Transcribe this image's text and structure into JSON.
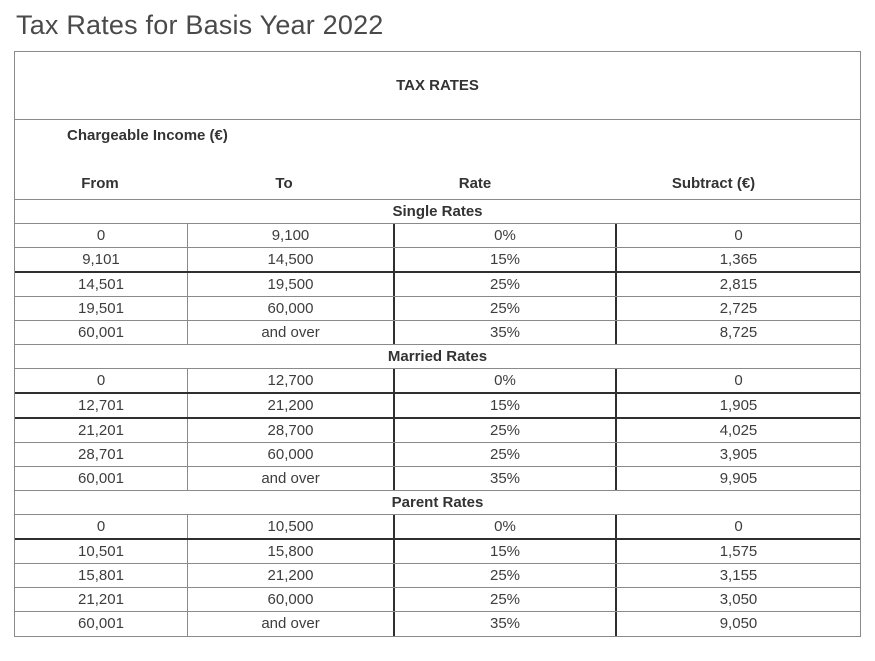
{
  "page_title": "Tax Rates for Basis Year 2022",
  "table": {
    "title": "TAX RATES",
    "group_header": "Chargeable Income (€)",
    "columns": [
      "From",
      "To",
      "Rate",
      "Subtract (€)"
    ],
    "sections": [
      {
        "label": "Single Rates",
        "rows": [
          {
            "from": "0",
            "to": "9,100",
            "rate": "0%",
            "subtract": "0",
            "thick_bottom": false
          },
          {
            "from": "9,101",
            "to": "14,500",
            "rate": "15%",
            "subtract": "1,365",
            "thick_bottom": true
          },
          {
            "from": "14,501",
            "to": "19,500",
            "rate": "25%",
            "subtract": "2,815",
            "thick_bottom": false
          },
          {
            "from": "19,501",
            "to": "60,000",
            "rate": "25%",
            "subtract": "2,725",
            "thick_bottom": false
          },
          {
            "from": "60,001",
            "to": "and over",
            "rate": "35%",
            "subtract": "8,725",
            "thick_bottom": false
          }
        ]
      },
      {
        "label": "Married Rates",
        "rows": [
          {
            "from": "0",
            "to": "12,700",
            "rate": "0%",
            "subtract": "0",
            "thick_bottom": true
          },
          {
            "from": "12,701",
            "to": "21,200",
            "rate": "15%",
            "subtract": "1,905",
            "thick_bottom": true
          },
          {
            "from": "21,201",
            "to": "28,700",
            "rate": "25%",
            "subtract": "4,025",
            "thick_bottom": false
          },
          {
            "from": "28,701",
            "to": "60,000",
            "rate": "25%",
            "subtract": "3,905",
            "thick_bottom": false
          },
          {
            "from": "60,001",
            "to": "and over",
            "rate": "35%",
            "subtract": "9,905",
            "thick_bottom": false
          }
        ]
      },
      {
        "label": "Parent Rates",
        "rows": [
          {
            "from": "0",
            "to": "10,500",
            "rate": "0%",
            "subtract": "0",
            "thick_bottom": true
          },
          {
            "from": "10,501",
            "to": "15,800",
            "rate": "15%",
            "subtract": "1,575",
            "thick_bottom": false
          },
          {
            "from": "15,801",
            "to": "21,200",
            "rate": "25%",
            "subtract": "3,155",
            "thick_bottom": false
          },
          {
            "from": "21,201",
            "to": "60,000",
            "rate": "25%",
            "subtract": "3,050",
            "thick_bottom": false
          },
          {
            "from": "60,001",
            "to": "and over",
            "rate": "35%",
            "subtract": "9,050",
            "thick_bottom": false
          }
        ]
      }
    ]
  },
  "colors": {
    "text": "#3d3d3d",
    "text_bold": "#333333",
    "title": "#4a4a4a",
    "border_thin": "#8a8a8a",
    "border_thick": "#2f2f2f",
    "background": "#ffffff"
  }
}
